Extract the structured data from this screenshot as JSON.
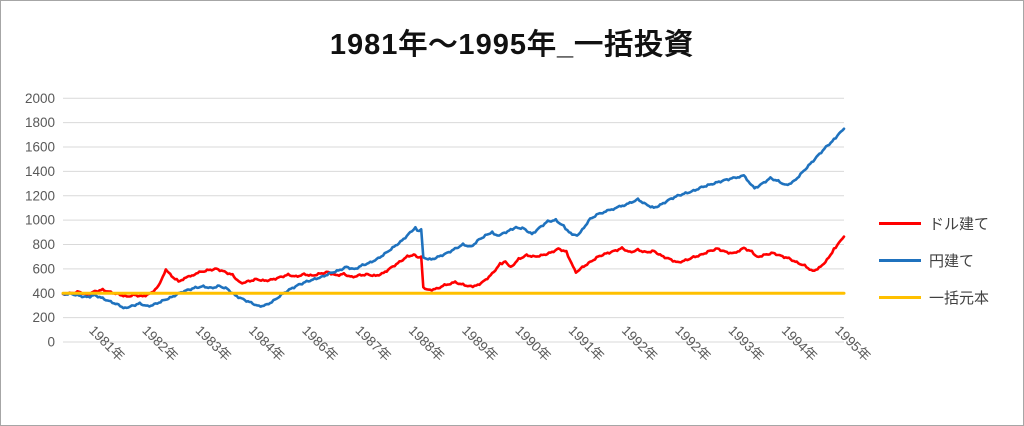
{
  "title": "1981年～1995年_一括投資",
  "colors": {
    "dollar_line": "#FF0000",
    "yen_line": "#1F72BE",
    "principal_line": "#FFC000",
    "gridline": "#D9D9D9",
    "axis_text": "#595959",
    "legend_text": "#404040",
    "title_text": "#111111",
    "frame_border": "#A6A6A6"
  },
  "chart_data": {
    "type": "line",
    "title": "1981年～1995年_一括投資",
    "grid": true,
    "legend_position": "right",
    "x_axis": {
      "tick_labels": [
        "1981年",
        "1982年",
        "1983年",
        "1984年",
        "1986年",
        "1987年",
        "1988年",
        "1989年",
        "1990年",
        "1991年",
        "1992年",
        "1992年",
        "1993年",
        "1994年",
        "1995年"
      ],
      "label_rotation_deg": 45,
      "range_years": [
        1981.0,
        1995.74
      ]
    },
    "y_axis": {
      "min": 0,
      "max": 2000,
      "step": 200,
      "tick_labels": [
        "0",
        "200",
        "400",
        "600",
        "800",
        "1000",
        "1200",
        "1400",
        "1600",
        "1800",
        "2000"
      ]
    },
    "series": [
      {
        "name": "ドル建て",
        "color": "#FF0000",
        "jitter": 8,
        "points": [
          [
            1981.0,
            390
          ],
          [
            1981.15,
            400
          ],
          [
            1981.3,
            412
          ],
          [
            1981.45,
            388
          ],
          [
            1981.6,
            415
          ],
          [
            1981.75,
            428
          ],
          [
            1981.9,
            408
          ],
          [
            1982.05,
            392
          ],
          [
            1982.2,
            372
          ],
          [
            1982.35,
            386
          ],
          [
            1982.5,
            374
          ],
          [
            1982.65,
            398
          ],
          [
            1982.8,
            455
          ],
          [
            1982.94,
            595
          ],
          [
            1983.05,
            538
          ],
          [
            1983.18,
            500
          ],
          [
            1983.32,
            526
          ],
          [
            1983.46,
            552
          ],
          [
            1983.6,
            575
          ],
          [
            1983.75,
            590
          ],
          [
            1983.9,
            600
          ],
          [
            1984.05,
            576
          ],
          [
            1984.2,
            550
          ],
          [
            1984.35,
            482
          ],
          [
            1984.5,
            498
          ],
          [
            1984.65,
            515
          ],
          [
            1984.8,
            502
          ],
          [
            1984.95,
            512
          ],
          [
            1985.1,
            532
          ],
          [
            1985.25,
            552
          ],
          [
            1985.4,
            536
          ],
          [
            1985.55,
            556
          ],
          [
            1985.7,
            544
          ],
          [
            1985.85,
            560
          ],
          [
            1986.0,
            574
          ],
          [
            1986.15,
            546
          ],
          [
            1986.3,
            558
          ],
          [
            1986.45,
            532
          ],
          [
            1986.6,
            548
          ],
          [
            1986.75,
            554
          ],
          [
            1986.9,
            542
          ],
          [
            1987.05,
            566
          ],
          [
            1987.2,
            612
          ],
          [
            1987.35,
            656
          ],
          [
            1987.5,
            702
          ],
          [
            1987.62,
            716
          ],
          [
            1987.7,
            688
          ],
          [
            1987.76,
            706
          ],
          [
            1987.8,
            446
          ],
          [
            1987.9,
            426
          ],
          [
            1988.05,
            436
          ],
          [
            1988.2,
            466
          ],
          [
            1988.4,
            490
          ],
          [
            1988.55,
            470
          ],
          [
            1988.7,
            455
          ],
          [
            1988.8,
            462
          ],
          [
            1988.95,
            500
          ],
          [
            1989.1,
            560
          ],
          [
            1989.25,
            640
          ],
          [
            1989.35,
            660
          ],
          [
            1989.45,
            612
          ],
          [
            1989.6,
            680
          ],
          [
            1989.75,
            712
          ],
          [
            1989.9,
            700
          ],
          [
            1990.05,
            712
          ],
          [
            1990.2,
            732
          ],
          [
            1990.35,
            765
          ],
          [
            1990.5,
            740
          ],
          [
            1990.6,
            640
          ],
          [
            1990.68,
            572
          ],
          [
            1990.8,
            612
          ],
          [
            1990.95,
            656
          ],
          [
            1991.1,
            700
          ],
          [
            1991.25,
            726
          ],
          [
            1991.4,
            746
          ],
          [
            1991.55,
            770
          ],
          [
            1991.7,
            736
          ],
          [
            1991.85,
            756
          ],
          [
            1992.0,
            736
          ],
          [
            1992.15,
            746
          ],
          [
            1992.3,
            706
          ],
          [
            1992.45,
            680
          ],
          [
            1992.6,
            652
          ],
          [
            1992.75,
            670
          ],
          [
            1992.9,
            696
          ],
          [
            1993.05,
            716
          ],
          [
            1993.2,
            746
          ],
          [
            1993.35,
            766
          ],
          [
            1993.5,
            740
          ],
          [
            1993.65,
            726
          ],
          [
            1993.85,
            770
          ],
          [
            1994.0,
            742
          ],
          [
            1994.1,
            696
          ],
          [
            1994.25,
            716
          ],
          [
            1994.4,
            730
          ],
          [
            1994.55,
            706
          ],
          [
            1994.7,
            686
          ],
          [
            1994.85,
            652
          ],
          [
            1995.0,
            626
          ],
          [
            1995.15,
            580
          ],
          [
            1995.3,
            616
          ],
          [
            1995.45,
            690
          ],
          [
            1995.55,
            760
          ],
          [
            1995.65,
            816
          ],
          [
            1995.74,
            870
          ]
        ]
      },
      {
        "name": "円建て",
        "color": "#1F72BE",
        "jitter": 8,
        "points": [
          [
            1981.0,
            392
          ],
          [
            1981.15,
            396
          ],
          [
            1981.3,
            380
          ],
          [
            1981.45,
            368
          ],
          [
            1981.6,
            384
          ],
          [
            1981.75,
            358
          ],
          [
            1981.9,
            330
          ],
          [
            1982.05,
            304
          ],
          [
            1982.17,
            276
          ],
          [
            1982.3,
            296
          ],
          [
            1982.45,
            316
          ],
          [
            1982.6,
            292
          ],
          [
            1982.75,
            312
          ],
          [
            1982.9,
            342
          ],
          [
            1983.05,
            368
          ],
          [
            1983.2,
            402
          ],
          [
            1983.35,
            426
          ],
          [
            1983.5,
            446
          ],
          [
            1983.65,
            456
          ],
          [
            1983.8,
            442
          ],
          [
            1983.95,
            460
          ],
          [
            1984.1,
            436
          ],
          [
            1984.25,
            382
          ],
          [
            1984.4,
            350
          ],
          [
            1984.55,
            322
          ],
          [
            1984.7,
            292
          ],
          [
            1984.85,
            306
          ],
          [
            1985.0,
            346
          ],
          [
            1985.15,
            396
          ],
          [
            1985.3,
            436
          ],
          [
            1985.45,
            470
          ],
          [
            1985.6,
            496
          ],
          [
            1985.75,
            516
          ],
          [
            1985.9,
            536
          ],
          [
            1986.05,
            566
          ],
          [
            1986.2,
            586
          ],
          [
            1986.35,
            616
          ],
          [
            1986.5,
            596
          ],
          [
            1986.65,
            630
          ],
          [
            1986.8,
            652
          ],
          [
            1986.95,
            686
          ],
          [
            1987.1,
            732
          ],
          [
            1987.25,
            782
          ],
          [
            1987.4,
            832
          ],
          [
            1987.55,
            898
          ],
          [
            1987.65,
            936
          ],
          [
            1987.72,
            906
          ],
          [
            1987.76,
            930
          ],
          [
            1987.8,
            692
          ],
          [
            1987.95,
            676
          ],
          [
            1988.1,
            702
          ],
          [
            1988.25,
            730
          ],
          [
            1988.4,
            765
          ],
          [
            1988.55,
            800
          ],
          [
            1988.7,
            780
          ],
          [
            1988.85,
            840
          ],
          [
            1989.0,
            880
          ],
          [
            1989.1,
            900
          ],
          [
            1989.2,
            870
          ],
          [
            1989.3,
            890
          ],
          [
            1989.45,
            920
          ],
          [
            1989.55,
            940
          ],
          [
            1989.7,
            930
          ],
          [
            1989.85,
            885
          ],
          [
            1990.0,
            940
          ],
          [
            1990.15,
            990
          ],
          [
            1990.3,
            1000
          ],
          [
            1990.45,
            950
          ],
          [
            1990.55,
            900
          ],
          [
            1990.7,
            870
          ],
          [
            1990.8,
            920
          ],
          [
            1990.95,
            1010
          ],
          [
            1991.1,
            1050
          ],
          [
            1991.3,
            1080
          ],
          [
            1991.5,
            1110
          ],
          [
            1991.7,
            1140
          ],
          [
            1991.85,
            1170
          ],
          [
            1992.0,
            1130
          ],
          [
            1992.15,
            1100
          ],
          [
            1992.3,
            1130
          ],
          [
            1992.45,
            1170
          ],
          [
            1992.6,
            1200
          ],
          [
            1992.75,
            1220
          ],
          [
            1992.9,
            1240
          ],
          [
            1993.05,
            1270
          ],
          [
            1993.2,
            1290
          ],
          [
            1993.35,
            1310
          ],
          [
            1993.5,
            1330
          ],
          [
            1993.65,
            1345
          ],
          [
            1993.85,
            1365
          ],
          [
            1994.05,
            1260
          ],
          [
            1994.2,
            1300
          ],
          [
            1994.35,
            1345
          ],
          [
            1994.5,
            1320
          ],
          [
            1994.65,
            1285
          ],
          [
            1994.8,
            1320
          ],
          [
            1994.95,
            1390
          ],
          [
            1995.1,
            1460
          ],
          [
            1995.25,
            1530
          ],
          [
            1995.4,
            1600
          ],
          [
            1995.55,
            1660
          ],
          [
            1995.65,
            1710
          ],
          [
            1995.74,
            1755
          ]
        ]
      },
      {
        "name": "一括元本",
        "color": "#FFC000",
        "jitter": 0,
        "points": [
          [
            1981.0,
            400
          ],
          [
            1995.74,
            400
          ]
        ]
      }
    ]
  }
}
